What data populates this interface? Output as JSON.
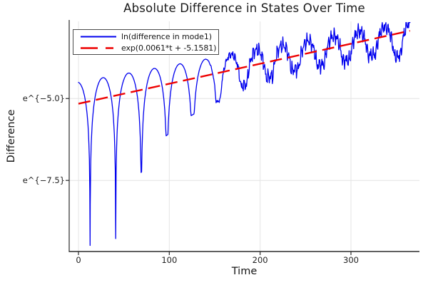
{
  "chart_data": {
    "type": "line",
    "title": "Absolute Difference in States Over Time",
    "xlabel": "Time",
    "ylabel": "Difference",
    "background": "#ffffff",
    "axis_color": "#2b2b2b",
    "grid_color": "#e4e4e4",
    "text_color": "#191919",
    "grid": true,
    "xlim": [
      -10.2,
      375.4
    ],
    "ylim": [
      -9.67,
      -2.645
    ],
    "x_ticks": [
      {
        "v": 0,
        "label": "0"
      },
      {
        "v": 100,
        "label": "100"
      },
      {
        "v": 200,
        "label": "200"
      },
      {
        "v": 300,
        "label": "300"
      }
    ],
    "y_ticks": [
      {
        "v": -5.0,
        "label": "e^{−5.0}"
      },
      {
        "v": -7.5,
        "label": "e^{−7.5}"
      }
    ],
    "legend": {
      "position": "top-left-inside",
      "border_color": "#4a4a4a",
      "background": "#ffffff"
    },
    "series": [
      {
        "name": "ln(difference in mode1)",
        "color": "#0000ee",
        "style": "solid",
        "stroke_width": 1.3,
        "model": {
          "description": "ln of |oscillating mode difference|: rounded arches between sharp downward cusps every ~28 time units; cusp depth shrinks over time; envelope grows along the exponential fit; high-frequency noise appears after t~150",
          "t_range": [
            0,
            365
          ],
          "step": 0.5,
          "arch_offset_start": 0.66,
          "arch_offset_slope": -0.0011,
          "period": 28.2,
          "first_zero": 12.8,
          "cusp_floor_points": [
            [
              0,
              -9.55
            ],
            [
              40,
              -9.35
            ],
            [
              68,
              -7.3
            ],
            [
              96,
              -6.15
            ],
            [
              124,
              -5.52
            ],
            [
              152,
              -5.11
            ],
            [
              180,
              -4.62
            ],
            [
              210,
              -4.33
            ],
            [
              240,
              -4.1
            ],
            [
              270,
              -3.95
            ],
            [
              300,
              -3.8
            ],
            [
              330,
              -3.62
            ],
            [
              350,
              -3.72
            ],
            [
              365,
              -3.55
            ]
          ],
          "noise": {
            "start": 140,
            "full": 190,
            "scale": 0.13,
            "components": [
              [
                1.9,
                1.0,
                0.5
              ],
              [
                3.1,
                0.8,
                1.7
              ],
              [
                5.7,
                0.6,
                0.3
              ]
            ]
          },
          "clip_max": -2.68
        }
      },
      {
        "name": "exp(0.0061*t + -5.1581)",
        "color": "#ee0000",
        "style": "dashed",
        "stroke_width": 2.4,
        "dash": "17 8",
        "slope": 0.0061,
        "intercept": -5.1581,
        "t_range": [
          0,
          365
        ]
      }
    ]
  }
}
